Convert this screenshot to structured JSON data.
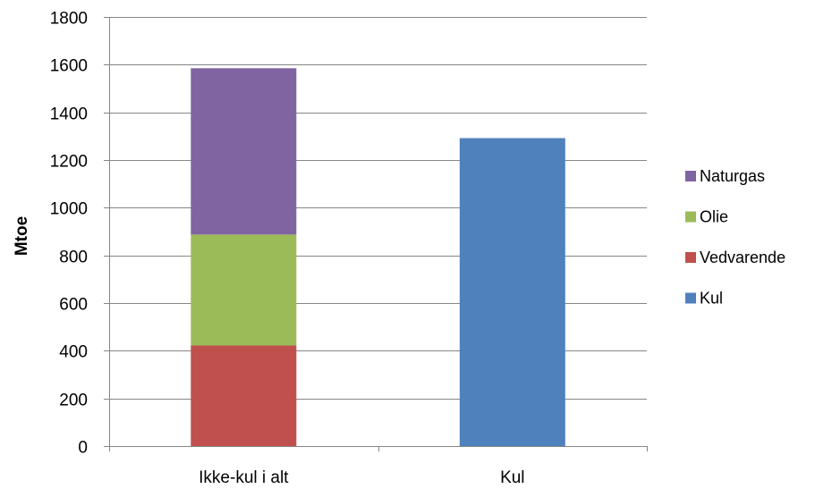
{
  "chart_data": {
    "type": "bar",
    "stacked": true,
    "title": "",
    "xlabel": "",
    "ylabel": "Mtoe",
    "ylim": [
      0,
      1800
    ],
    "yticks": [
      0,
      200,
      400,
      600,
      800,
      1000,
      1200,
      1400,
      1600,
      1800
    ],
    "categories": [
      "Ikke-kul i alt",
      "Kul"
    ],
    "series": [
      {
        "name": "Vedvarende",
        "color": "#C0504D",
        "values": [
          422,
          0
        ]
      },
      {
        "name": "Olie",
        "color": "#9BBB59",
        "values": [
          465,
          0
        ]
      },
      {
        "name": "Naturgas",
        "color": "#8064A2",
        "values": [
          698,
          0
        ]
      },
      {
        "name": "Kul",
        "color": "#4F81BD",
        "values": [
          0,
          1292
        ]
      }
    ],
    "legend_order": [
      "Naturgas",
      "Olie",
      "Vedvarende",
      "Kul"
    ],
    "legend_position": "right",
    "grid": true
  }
}
